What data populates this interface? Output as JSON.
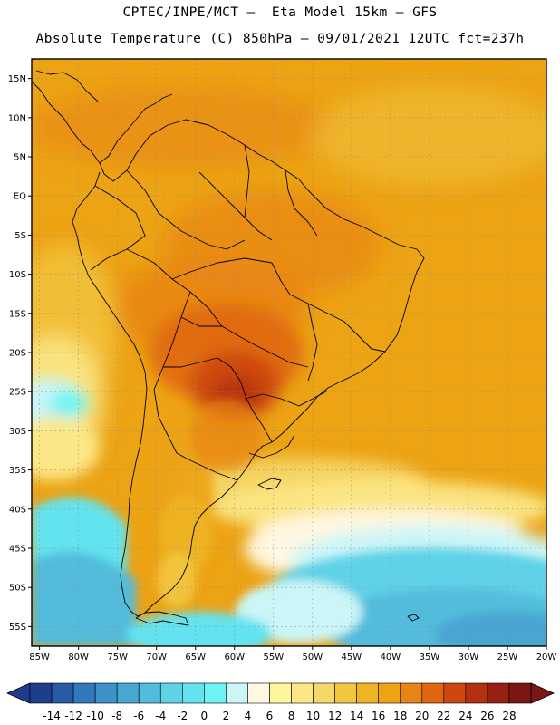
{
  "header": {
    "line1": "CPTEC/INPE/MCT —  Eta Model 15km — GFS",
    "line2": "Absolute Temperature (C) 850hPa — 09/01/2021 12UTC fct=237h"
  },
  "map": {
    "lat_labels": [
      "15N",
      "10N",
      "5N",
      "EQ",
      "5S",
      "10S",
      "15S",
      "20S",
      "25S",
      "30S",
      "35S",
      "40S",
      "45S",
      "50S",
      "55S"
    ],
    "lon_labels": [
      "85W",
      "80W",
      "75W",
      "70W",
      "65W",
      "60W",
      "55W",
      "50W",
      "45W",
      "40W",
      "35W",
      "30W",
      "25W",
      "20W"
    ],
    "lat_range": [
      17.5,
      -57.5
    ],
    "lon_range": [
      -86,
      -20
    ],
    "base_color": "#eca314"
  },
  "colorbar": {
    "colors": [
      "#1f3d8d",
      "#285aa8",
      "#3178bd",
      "#3c92c9",
      "#48a6d3",
      "#52bcdc",
      "#5fd2e8",
      "#63e3ef",
      "#6bf3f6",
      "#cbf5f7",
      "#fff7e1",
      "#fff59a",
      "#fbe787",
      "#f6d868",
      "#f2c640",
      "#eeb424",
      "#eca314",
      "#e88414",
      "#e06510",
      "#cc4810",
      "#b53010",
      "#972012",
      "#7a1714"
    ],
    "low_color": "#1f3d8d",
    "high_color": "#7a1714",
    "labels": [
      "-14",
      "-12",
      "-10",
      "-8",
      "-6",
      "-4",
      "-2",
      "0",
      "2",
      "4",
      "6",
      "8",
      "10",
      "12",
      "14",
      "16",
      "18",
      "20",
      "22",
      "24",
      "26",
      "28"
    ]
  }
}
